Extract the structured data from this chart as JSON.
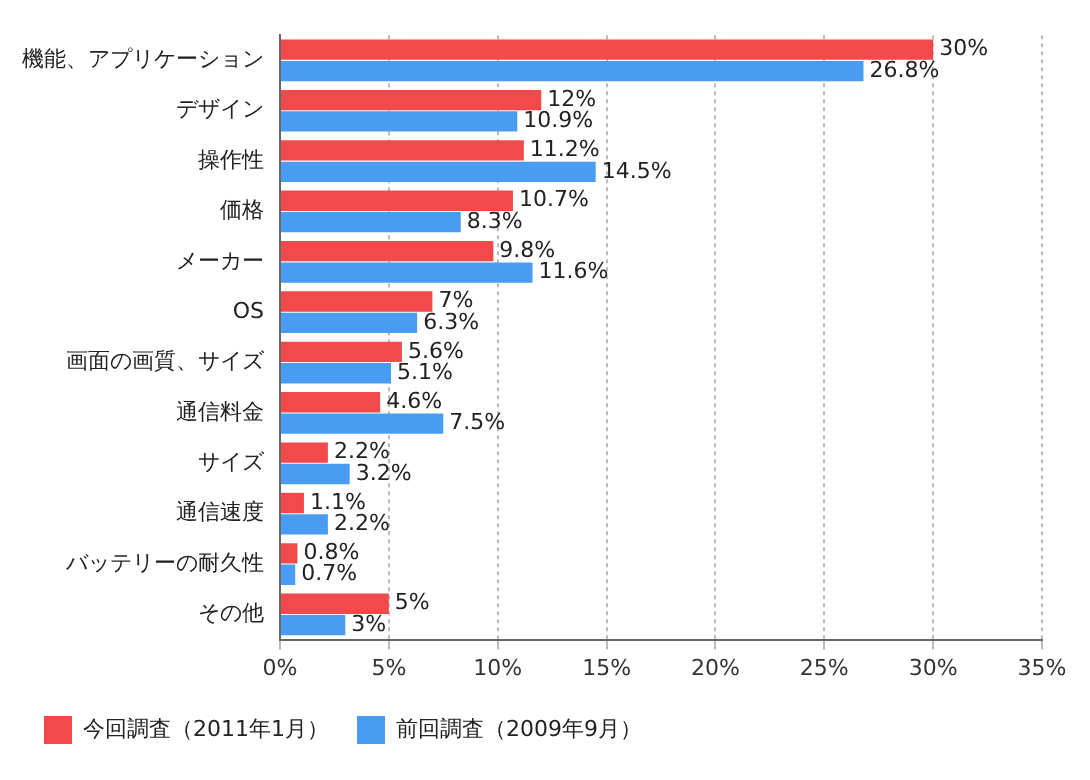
{
  "chart_data": {
    "type": "bar",
    "orientation": "horizontal",
    "categories": [
      "機能、アプリケーション",
      "デザイン",
      "操作性",
      "価格",
      "メーカー",
      "OS",
      "画面の画質、サイズ",
      "通信料金",
      "サイズ",
      "通信速度",
      "バッテリーの耐久性",
      "その他"
    ],
    "series": [
      {
        "name": "今回調査（2011年1月）",
        "color": "#f24a4a",
        "values": [
          30,
          12,
          11.2,
          10.7,
          9.8,
          7,
          5.6,
          4.6,
          2.2,
          1.1,
          0.8,
          5
        ],
        "value_labels": [
          "30%",
          "12%",
          "11.2%",
          "10.7%",
          "9.8%",
          "7%",
          "5.6%",
          "4.6%",
          "2.2%",
          "1.1%",
          "0.8%",
          "5%"
        ]
      },
      {
        "name": "前回調査（2009年9月）",
        "color": "#4a9cf2",
        "values": [
          26.8,
          10.9,
          14.5,
          8.3,
          11.6,
          6.3,
          5.1,
          7.5,
          3.2,
          2.2,
          0.7,
          3
        ],
        "value_labels": [
          "26.8%",
          "10.9%",
          "14.5%",
          "8.3%",
          "11.6%",
          "6.3%",
          "5.1%",
          "7.5%",
          "3.2%",
          "2.2%",
          "0.7%",
          "3%"
        ]
      }
    ],
    "xlim": [
      0,
      35
    ],
    "xticks": [
      {
        "value": 0,
        "label": "0%"
      },
      {
        "value": 5,
        "label": "5%"
      },
      {
        "value": 10,
        "label": "10%"
      },
      {
        "value": 15,
        "label": "15%"
      },
      {
        "value": 20,
        "label": "20%"
      },
      {
        "value": 25,
        "label": "25%"
      },
      {
        "value": 30,
        "label": "30%"
      },
      {
        "value": 35,
        "label": "35%"
      }
    ],
    "grid": "x",
    "legend": "bottom left"
  }
}
